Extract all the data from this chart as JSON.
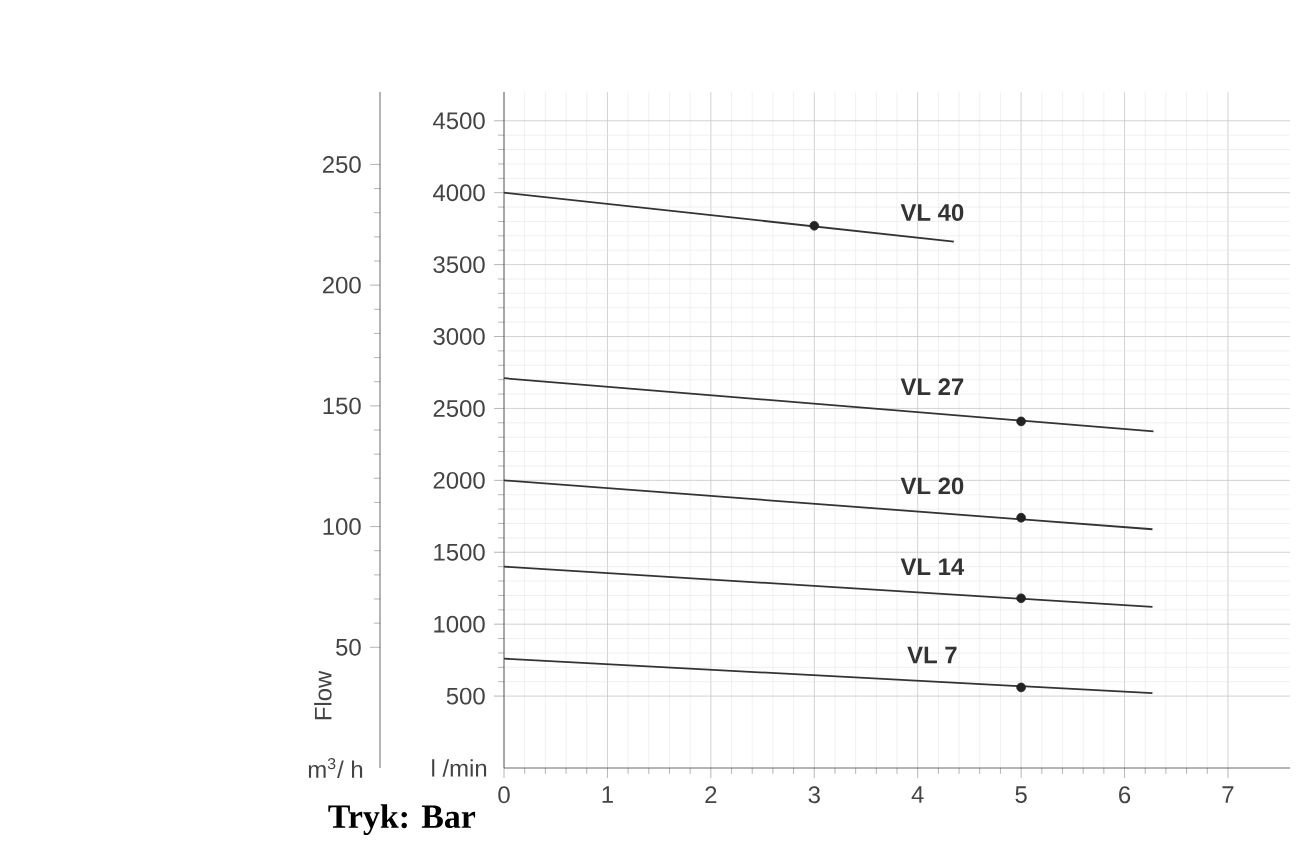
{
  "chart_data": {
    "type": "line",
    "xlabel": "Tryk: Bar",
    "ylabel": "l /min",
    "y2label": "m$^{3}$/ h",
    "annotations": [
      "Flow"
    ],
    "series": [
      {
        "name": "VL 40",
        "color": "#333333",
        "x": [
          0,
          4.35
        ],
        "values": [
          4000,
          3660
        ]
      },
      {
        "name": "VL 27",
        "color": "#333333",
        "x": [
          0,
          6.28
        ],
        "values": [
          2710,
          2340
        ]
      },
      {
        "name": "VL 20",
        "color": "#333333",
        "x": [
          0,
          6.27
        ],
        "values": [
          2000,
          1660
        ]
      },
      {
        "name": "VL 14",
        "color": "#333333",
        "x": [
          0,
          6.27
        ],
        "values": [
          1400,
          1120
        ]
      },
      {
        "name": "VL 7",
        "color": "#333333",
        "x": [
          0,
          6.27
        ],
        "values": [
          760,
          520
        ]
      },
      {
        "type": "scatter",
        "color": "#222222",
        "marker": "circle",
        "x": [
          3,
          5,
          5,
          5,
          5
        ],
        "values": [
          3770,
          2410,
          1740,
          1180,
          560
        ]
      }
    ],
    "xlim": [
      0,
      7.6
    ],
    "xticks": [
      0,
      1,
      2,
      3,
      4,
      5,
      6,
      7
    ],
    "ylim": [
      0,
      4700
    ],
    "yticks": [
      500,
      1000,
      1500,
      2000,
      2500,
      3000,
      3500,
      4000,
      4500
    ],
    "y2lim": [
      0,
      280
    ],
    "y2ticks": [
      50,
      100,
      150,
      200,
      250
    ],
    "grid": true,
    "marker": "none",
    "line_style": "solid"
  }
}
